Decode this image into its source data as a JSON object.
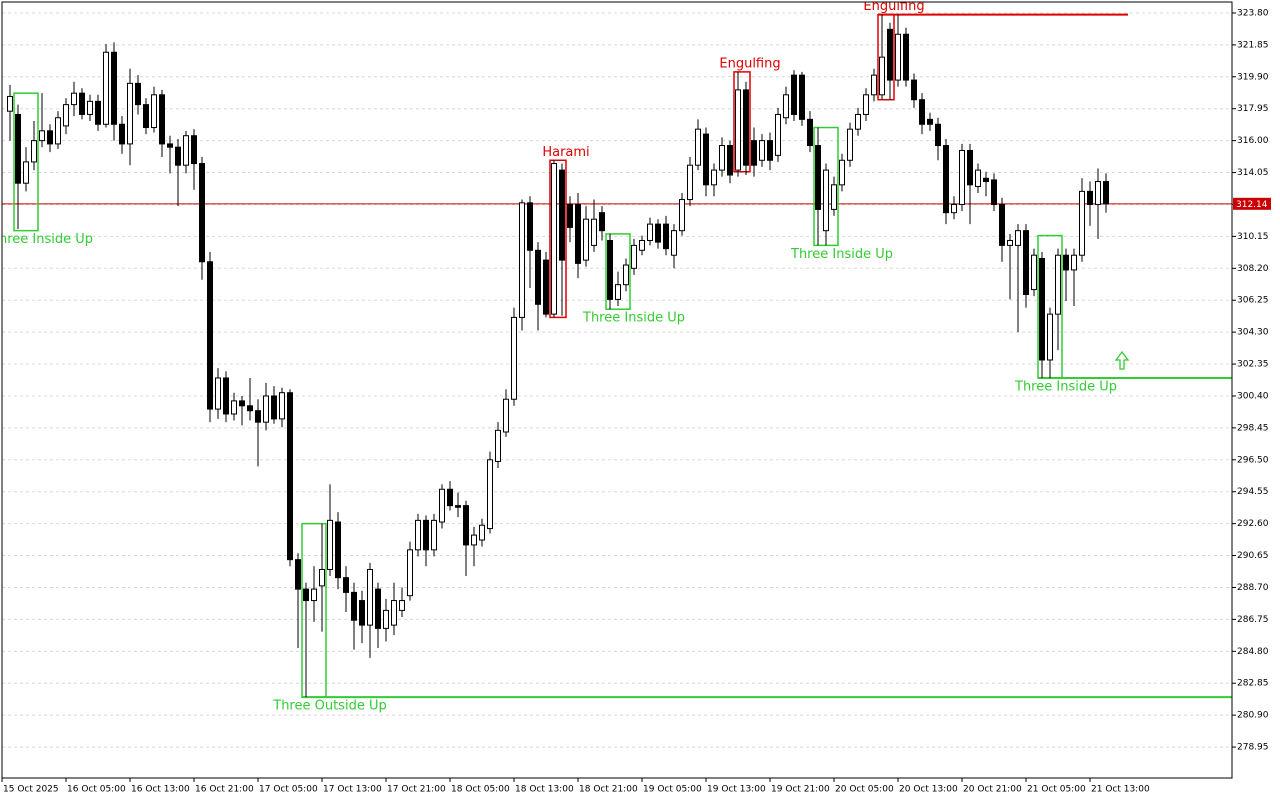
{
  "chart_data": {
    "type": "candlestick",
    "ylim": [
      277.06,
      324.47
    ],
    "yticks": [
      {
        "value": 323.8,
        "label": "323.80"
      },
      321.85,
      {
        "value": 319.9,
        "label": "319.90"
      },
      317.95,
      {
        "value": 316,
        "label": "316.00"
      },
      314.05,
      {
        "value": 312.1,
        "label": "312.10"
      },
      310.15,
      {
        "value": 308.2,
        "label": "308.20"
      },
      306.25,
      {
        "value": 304.3,
        "label": "304.30"
      },
      302.35,
      {
        "value": 300.4,
        "label": "300.40"
      },
      298.45,
      {
        "value": 296.5,
        "label": "296.50"
      },
      294.55,
      {
        "value": 292.6,
        "label": "292.60"
      },
      290.65,
      {
        "value": 288.7,
        "label": "288.70"
      },
      286.75,
      {
        "value": 284.8,
        "label": "284.80"
      },
      282.85,
      {
        "value": 280.9,
        "label": "280.90"
      },
      278.95
    ],
    "grid": true,
    "bull_color": "#ffffff",
    "bear_color": "#000000",
    "last_price": 312.14,
    "last_price_color": "#cc0000",
    "categories": [
      "15 Oct 2025",
      null,
      null,
      null,
      null,
      null,
      null,
      null,
      "16 Oct 05:00",
      null,
      null,
      null,
      null,
      null,
      null,
      null,
      "16 Oct 13:00",
      null,
      null,
      null,
      null,
      null,
      null,
      null,
      "16 Oct 21:00",
      null,
      null,
      null,
      null,
      null,
      null,
      null,
      "17 Oct 05:00",
      null,
      null,
      null,
      null,
      null,
      null,
      null,
      "17 Oct 13:00",
      null,
      null,
      null,
      null,
      null,
      null,
      null,
      "17 Oct 21:00",
      null,
      null,
      null,
      null,
      null,
      null,
      null,
      "18 Oct 05:00",
      null,
      null,
      null,
      null,
      null,
      null,
      null,
      "18 Oct 13:00",
      null,
      null,
      null,
      null,
      null,
      null,
      null,
      "18 Oct 21:00",
      null,
      null,
      null,
      null,
      null,
      null,
      null,
      "19 Oct 05:00",
      null,
      null,
      null,
      null,
      null,
      null,
      null,
      "19 Oct 13:00",
      null,
      null,
      null,
      null,
      null,
      null,
      null,
      "19 Oct 21:00",
      null,
      null,
      null,
      null,
      null,
      null,
      null,
      "20 Oct 05:00",
      null,
      null,
      null,
      null,
      null,
      null,
      null,
      "20 Oct 13:00",
      null,
      null,
      null,
      null,
      null,
      null,
      null,
      "20 Oct 21:00",
      null,
      null,
      null,
      null,
      null,
      null,
      null,
      "21 Oct 05:00",
      null,
      null,
      null,
      null,
      null,
      null,
      null,
      "21 Oct 13:00",
      null
    ],
    "ohlc": [
      [
        317.8,
        319.4,
        316.0,
        318.7
      ],
      [
        317.6,
        318.2,
        310.6,
        313.4
      ],
      [
        313.4,
        315.6,
        312.9,
        314.7
      ],
      [
        314.7,
        317.2,
        314.2,
        316.0
      ],
      [
        316.0,
        318.9,
        315.6,
        316.6
      ],
      [
        316.6,
        317.0,
        315.3,
        315.8
      ],
      [
        315.8,
        317.8,
        315.5,
        317.4
      ],
      [
        316.9,
        318.6,
        316.4,
        318.2
      ],
      [
        318.2,
        319.6,
        317.5,
        318.9
      ],
      [
        318.9,
        319.2,
        317.3,
        317.6
      ],
      [
        317.6,
        318.8,
        317.2,
        318.4
      ],
      [
        318.4,
        318.8,
        316.6,
        317.0
      ],
      [
        317.0,
        321.9,
        316.8,
        321.4
      ],
      [
        321.4,
        322.0,
        316.0,
        317.0
      ],
      [
        317.0,
        317.5,
        315.2,
        315.8
      ],
      [
        315.8,
        320.4,
        314.5,
        319.5
      ],
      [
        319.5,
        320.0,
        317.6,
        318.2
      ],
      [
        318.2,
        318.6,
        316.4,
        316.8
      ],
      [
        316.8,
        319.3,
        316.5,
        318.8
      ],
      [
        318.8,
        319.1,
        315.0,
        315.8
      ],
      [
        315.8,
        316.3,
        314.0,
        315.6
      ],
      [
        315.6,
        316.1,
        312.0,
        314.5
      ],
      [
        314.5,
        316.6,
        314.0,
        316.3
      ],
      [
        316.3,
        316.7,
        313.0,
        314.6
      ],
      [
        314.6,
        315.0,
        307.5,
        308.6
      ],
      [
        308.6,
        309.2,
        298.8,
        299.6
      ],
      [
        299.6,
        302.1,
        299.0,
        301.5
      ],
      [
        301.5,
        301.9,
        298.8,
        299.3
      ],
      [
        299.3,
        300.6,
        298.9,
        300.1
      ],
      [
        300.1,
        300.4,
        298.6,
        299.8
      ],
      [
        299.8,
        301.5,
        298.9,
        299.5
      ],
      [
        299.5,
        300.2,
        296.1,
        298.8
      ],
      [
        298.8,
        301.2,
        298.3,
        300.4
      ],
      [
        300.4,
        301.0,
        298.7,
        299.0
      ],
      [
        299.0,
        300.9,
        298.5,
        300.6
      ],
      [
        300.6,
        300.8,
        290.0,
        290.4
      ],
      [
        290.4,
        290.8,
        285.0,
        288.6
      ],
      [
        288.6,
        289.0,
        282.0,
        287.9
      ],
      [
        287.9,
        290.0,
        286.6,
        288.6
      ],
      [
        288.8,
        292.6,
        286.0,
        289.8
      ],
      [
        289.8,
        295.0,
        289.4,
        292.8
      ],
      [
        292.7,
        293.3,
        288.6,
        289.3
      ],
      [
        289.3,
        290.0,
        287.2,
        288.4
      ],
      [
        288.4,
        289.0,
        284.9,
        286.7
      ],
      [
        287.9,
        288.5,
        285.3,
        286.4
      ],
      [
        286.4,
        290.2,
        284.4,
        289.8
      ],
      [
        288.6,
        289.0,
        285.0,
        286.2
      ],
      [
        286.2,
        288.0,
        285.4,
        287.3
      ],
      [
        286.4,
        289.0,
        285.8,
        287.9
      ],
      [
        287.3,
        288.7,
        286.9,
        287.9
      ],
      [
        288.2,
        291.5,
        287.9,
        291.0
      ],
      [
        291.0,
        293.2,
        290.6,
        292.8
      ],
      [
        292.8,
        293.1,
        290.0,
        291.0
      ],
      [
        291.0,
        293.2,
        290.6,
        292.8
      ],
      [
        292.7,
        295.0,
        292.3,
        294.7
      ],
      [
        294.7,
        295.2,
        293.4,
        293.7
      ],
      [
        293.7,
        294.5,
        293.0,
        293.6
      ],
      [
        293.7,
        294.0,
        289.4,
        291.3
      ],
      [
        291.3,
        292.4,
        290.0,
        291.9
      ],
      [
        291.6,
        292.9,
        291.2,
        292.5
      ],
      [
        292.3,
        297.0,
        292.0,
        296.5
      ],
      [
        296.4,
        298.8,
        296.0,
        298.3
      ],
      [
        298.2,
        300.8,
        297.9,
        300.2
      ],
      [
        300.2,
        305.8,
        299.8,
        305.2
      ],
      [
        305.2,
        312.4,
        304.4,
        312.2
      ],
      [
        312.2,
        312.6,
        307.0,
        309.3
      ],
      [
        309.3,
        309.8,
        304.4,
        306.0
      ],
      [
        308.7,
        309.2,
        305.2,
        305.4
      ],
      [
        305.4,
        314.8,
        305.2,
        314.6
      ],
      [
        314.2,
        314.6,
        305.3,
        308.7
      ],
      [
        312.1,
        312.6,
        309.8,
        310.7
      ],
      [
        312.1,
        312.8,
        307.6,
        308.5
      ],
      [
        308.7,
        312.0,
        308.3,
        311.2
      ],
      [
        309.6,
        312.4,
        309.2,
        311.2
      ],
      [
        311.6,
        312.0,
        309.9,
        310.5
      ],
      [
        309.9,
        310.3,
        305.7,
        306.3
      ],
      [
        306.3,
        308.0,
        305.9,
        307.2
      ],
      [
        307.2,
        308.8,
        306.8,
        308.4
      ],
      [
        308.2,
        310.0,
        307.8,
        309.6
      ],
      [
        309.3,
        310.2,
        309.0,
        309.9
      ],
      [
        309.9,
        311.3,
        309.6,
        310.9
      ],
      [
        310.9,
        311.2,
        309.4,
        309.8
      ],
      [
        310.9,
        311.4,
        309.0,
        309.4
      ],
      [
        309.0,
        310.9,
        308.2,
        310.5
      ],
      [
        310.5,
        312.8,
        310.2,
        312.4
      ],
      [
        312.4,
        315.0,
        312.0,
        314.5
      ],
      [
        314.5,
        317.3,
        314.2,
        316.7
      ],
      [
        316.4,
        316.8,
        312.6,
        313.3
      ],
      [
        313.3,
        314.6,
        312.6,
        314.2
      ],
      [
        314.2,
        316.2,
        313.8,
        315.7
      ],
      [
        315.7,
        316.0,
        313.4,
        313.9
      ],
      [
        314.2,
        320.2,
        313.8,
        319.1
      ],
      [
        319.1,
        319.6,
        313.9,
        314.5
      ],
      [
        316.0,
        316.8,
        313.8,
        314.5
      ],
      [
        314.8,
        316.4,
        314.4,
        316.0
      ],
      [
        316.0,
        316.5,
        314.2,
        314.8
      ],
      [
        315.1,
        318.0,
        314.7,
        317.6
      ],
      [
        317.4,
        319.3,
        317.0,
        318.8
      ],
      [
        320.0,
        320.3,
        317.2,
        317.6
      ],
      [
        320.0,
        320.2,
        316.9,
        317.3
      ],
      [
        317.3,
        317.8,
        315.3,
        315.7
      ],
      [
        315.7,
        316.8,
        309.6,
        311.8
      ],
      [
        310.5,
        314.6,
        309.6,
        314.2
      ],
      [
        311.8,
        313.8,
        311.4,
        313.3
      ],
      [
        313.3,
        315.2,
        312.9,
        314.8
      ],
      [
        314.8,
        317.1,
        314.4,
        316.7
      ],
      [
        316.7,
        318.0,
        316.3,
        317.6
      ],
      [
        317.6,
        319.2,
        317.2,
        318.8
      ],
      [
        318.8,
        320.4,
        318.4,
        320.0
      ],
      [
        318.8,
        323.7,
        318.5,
        321.1
      ],
      [
        322.8,
        323.2,
        318.5,
        319.7
      ],
      [
        319.7,
        323.7,
        319.3,
        322.5
      ],
      [
        322.5,
        322.9,
        319.3,
        319.7
      ],
      [
        319.7,
        320.1,
        318.0,
        318.5
      ],
      [
        318.5,
        318.9,
        316.4,
        317.0
      ],
      [
        317.3,
        317.7,
        316.6,
        317.0
      ],
      [
        317.0,
        317.4,
        314.8,
        315.7
      ],
      [
        315.7,
        316.1,
        310.9,
        311.6
      ],
      [
        311.6,
        312.6,
        311.2,
        312.1
      ],
      [
        312.1,
        315.8,
        311.7,
        315.4
      ],
      [
        315.4,
        315.8,
        310.9,
        313.3
      ],
      [
        313.2,
        314.6,
        312.8,
        314.2
      ],
      [
        313.7,
        314.1,
        312.6,
        313.5
      ],
      [
        313.6,
        314.0,
        311.7,
        312.1
      ],
      [
        312.1,
        312.5,
        308.6,
        309.6
      ],
      [
        309.6,
        310.3,
        306.3,
        309.9
      ],
      [
        309.6,
        310.9,
        304.3,
        310.5
      ],
      [
        310.5,
        310.9,
        305.8,
        306.6
      ],
      [
        306.9,
        309.4,
        306.5,
        309.0
      ],
      [
        308.8,
        309.2,
        301.5,
        302.6
      ],
      [
        302.6,
        305.8,
        301.5,
        305.4
      ],
      [
        305.4,
        309.4,
        303.2,
        309.0
      ],
      [
        309.0,
        309.4,
        306.2,
        308.1
      ],
      [
        308.1,
        309.4,
        305.9,
        309.0
      ],
      [
        309.0,
        313.7,
        308.6,
        312.9
      ],
      [
        312.9,
        313.5,
        310.8,
        312.1
      ],
      [
        312.1,
        314.3,
        310.0,
        313.5
      ],
      [
        313.5,
        314.0,
        311.6,
        312.14
      ]
    ],
    "patterns": [
      {
        "label": "Three Inside Up",
        "color": "#33cc33",
        "candles": [
          1,
          3
        ],
        "top": 318.9,
        "bottom": 310.5,
        "extend": false
      },
      {
        "label": "Three Outside Up",
        "color": "#33cc33",
        "candles": [
          37,
          39
        ],
        "top": 292.6,
        "bottom": 282.0,
        "extend": true
      },
      {
        "label": "Harami",
        "color": "#e00000",
        "candles": [
          68,
          69
        ],
        "top": 314.8,
        "bottom": 305.2,
        "extend": false
      },
      {
        "label": "Three Inside Up",
        "color": "#33cc33",
        "candles": [
          75,
          77
        ],
        "top": 310.3,
        "bottom": 305.7,
        "extend": false
      },
      {
        "label": "Engulfing",
        "color": "#e00000",
        "candles": [
          91,
          92
        ],
        "top": 320.2,
        "bottom": 314.1,
        "extend": false
      },
      {
        "label": "Three Inside Up",
        "color": "#33cc33",
        "candles": [
          101,
          103
        ],
        "top": 316.8,
        "bottom": 309.6,
        "extend": false
      },
      {
        "label": "Engulfing",
        "color": "#e00000",
        "candles": [
          109,
          110
        ],
        "top": 323.7,
        "bottom": 318.5,
        "extend": true
      },
      {
        "label": "Three Inside Up",
        "color": "#33cc33",
        "candles": [
          129,
          131
        ],
        "top": 310.2,
        "bottom": 301.5,
        "extend": true
      }
    ]
  }
}
